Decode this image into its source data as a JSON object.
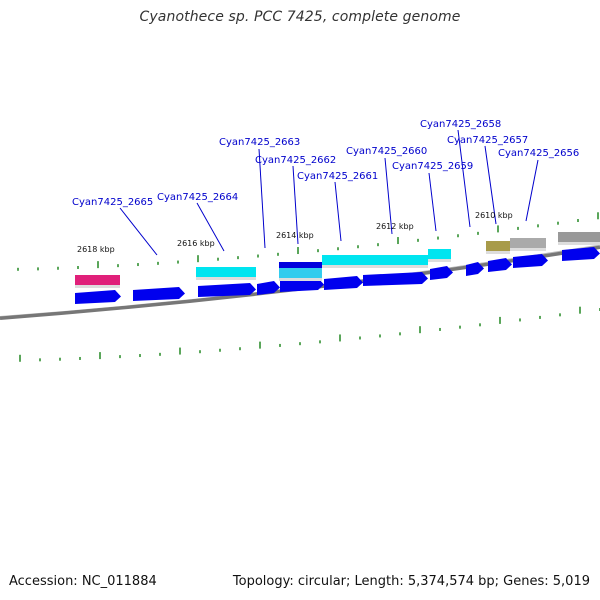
{
  "title": "Cyanothece sp. PCC 7425, complete genome",
  "footer": {
    "accession": "Accession: NC_011884",
    "summary": "Topology: circular; Length: 5,374,574 bp; Genes: 5,019"
  },
  "colors": {
    "background": "#ffffff",
    "gene_label": "#0000cc",
    "cds": "#0000ee",
    "tick": "#007700",
    "backbone": "#777777"
  },
  "kbp_labels": [
    {
      "text": "2618 kbp"
    },
    {
      "text": "2616 kbp"
    },
    {
      "text": "2614 kbp"
    },
    {
      "text": "2612 kbp"
    },
    {
      "text": "2610 kbp"
    }
  ],
  "gene_labels": [
    {
      "text": "Cyan7425_2665"
    },
    {
      "text": "Cyan7425_2664"
    },
    {
      "text": "Cyan7425_2663"
    },
    {
      "text": "Cyan7425_2662"
    },
    {
      "text": "Cyan7425_2661"
    },
    {
      "text": "Cyan7425_2660"
    },
    {
      "text": "Cyan7425_2659"
    },
    {
      "text": "Cyan7425_2658"
    },
    {
      "text": "Cyan7425_2657"
    },
    {
      "text": "Cyan7425_2656"
    }
  ]
}
